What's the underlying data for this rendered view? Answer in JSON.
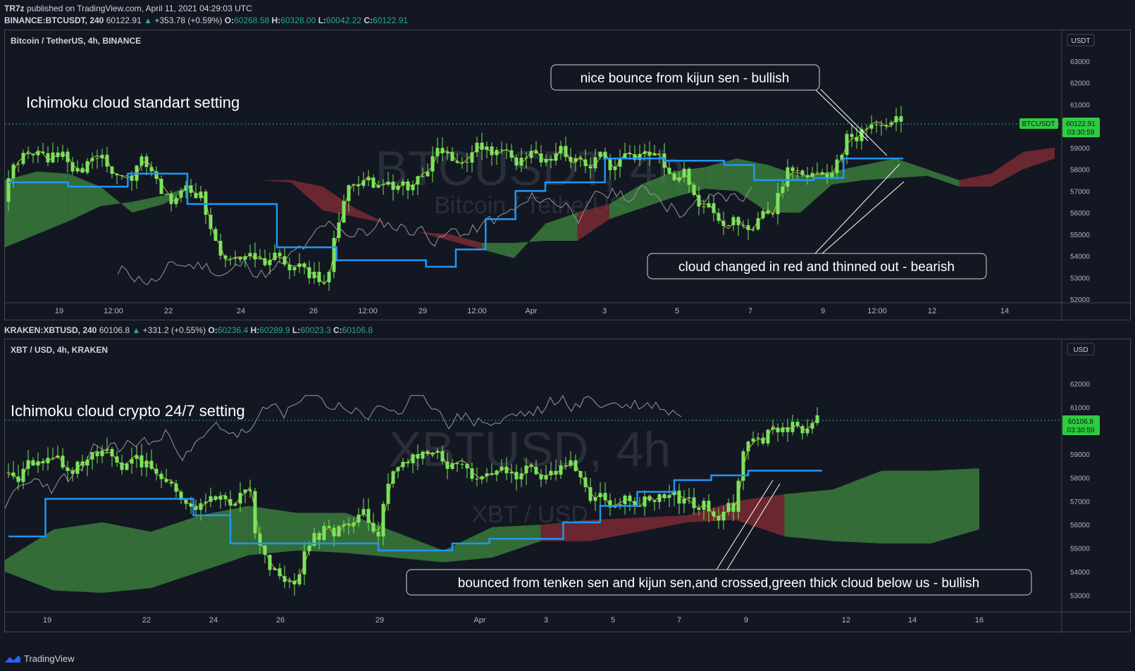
{
  "header": {
    "publisher": "TR7z",
    "published_text": "published on TradingView.com, April 11, 2021 04:29:03 UTC"
  },
  "top": {
    "symbol": "BINANCE:BTCUSDT, 240",
    "last": "60122.91",
    "change": "+353.78 (+0.59%)",
    "open": "60268.58",
    "high": "60328.00",
    "low": "60042.22",
    "close": "60122.91",
    "subtitle": "Bitcoin / TetherUS, 4h, BINANCE",
    "watermark": "BTCUSDT, 4h",
    "watermark2": "Bitcoin / TetherUS",
    "currency": "USDT",
    "price_tag": "BTCUSDT",
    "price_value": "60122.91",
    "price_timer": "03:30:59",
    "title_note": "Ichimoku cloud standart setting",
    "note1": "nice bounce from  kijun sen - bullish",
    "note2": "cloud changed in red and thinned out - bearish"
  },
  "bottom": {
    "symbol": "KRAKEN:XBTUSD, 240",
    "last": "60106.8",
    "change": "+331.2 (+0.55%)",
    "open": "60236.4",
    "high": "60289.9",
    "low": "60023.3",
    "close": "60106.8",
    "subtitle": "XBT / USD, 4h, KRAKEN",
    "watermark": "XBTUSD, 4h",
    "watermark2": "XBT / USD",
    "currency": "USD",
    "price_value": "60106.8",
    "price_timer": "03:30:59",
    "title_note": "Ichimoku cloud crypto 24/7 setting",
    "note1": "bounced from tenken sen and kijun sen,and crossed,green thick cloud below us - bullish"
  },
  "footer": {
    "brand": "TradingView"
  },
  "colors": {
    "up": "#26a69a",
    "candle": "#7be35b",
    "kijun": "#2196f3",
    "tenkan": "#c8b42c",
    "cloud_green": "#3f8a3f",
    "cloud_red": "#8a2e35",
    "lagging": "#9598a1"
  },
  "chart_data": [
    {
      "type": "candlestick",
      "title": "Bitcoin / TetherUS, 4h, BINANCE",
      "ylabel": "USDT",
      "ylim": [
        52000,
        64000
      ],
      "yticks": [
        52000,
        53000,
        54000,
        55000,
        56000,
        57000,
        58000,
        59000,
        60000,
        61000,
        62000,
        63000
      ],
      "xticks": [
        "19",
        "12:00",
        "22",
        "24",
        "26",
        "12:00",
        "29",
        "12:00",
        "Apr",
        "3",
        "5",
        "7",
        "9",
        "12:00",
        "12",
        "14"
      ],
      "last_price": 60122.91,
      "kijun": [
        57400,
        57400,
        57200,
        57200,
        57800,
        57800,
        56400,
        56400,
        56400,
        54400,
        54400,
        53800,
        53800,
        53800,
        53500,
        54300,
        55700,
        57000,
        57400,
        57400,
        58500,
        58500,
        58400,
        58400,
        58200,
        57500,
        57500,
        57600,
        58500,
        58500
      ],
      "cloud_top": [
        57500,
        57900,
        57800,
        57200,
        56000,
        56400,
        57300,
        57400,
        57500,
        57500,
        57200,
        56200,
        55500,
        55100,
        54700,
        54300,
        53900,
        55500,
        56000,
        56400,
        57300,
        57900,
        58100,
        58500,
        58200,
        57700,
        57900,
        58200,
        58500,
        58000,
        57500,
        57800,
        58800,
        59000
      ],
      "cloud_bottom": [
        54400,
        55000,
        55600,
        56300,
        56500,
        56800,
        57300,
        57400,
        57500,
        57400,
        56100,
        55800,
        55500,
        55100,
        55000,
        54600,
        54600,
        54700,
        54700,
        55700,
        56200,
        56700,
        57100,
        57000,
        56000,
        56000,
        57300,
        57500,
        57600,
        57700,
        57200,
        57200,
        58000,
        58500
      ]
    },
    {
      "type": "candlestick",
      "title": "XBT / USD, 4h, KRAKEN",
      "ylabel": "USD",
      "ylim": [
        52500,
        63500
      ],
      "yticks": [
        53000,
        54000,
        55000,
        56000,
        57000,
        58000,
        59000,
        60000,
        61000,
        62000
      ],
      "xticks": [
        "19",
        "22",
        "24",
        "26",
        "29",
        "Apr",
        "3",
        "5",
        "7",
        "9",
        "12",
        "14",
        "16"
      ],
      "last_price": 60106.8,
      "kijun": [
        55500,
        57100,
        57100,
        57100,
        57100,
        56400,
        55200,
        55200,
        55200,
        55200,
        54900,
        54900,
        55200,
        55400,
        55400,
        56100,
        56800,
        57400,
        57900,
        58100,
        58300,
        58300
      ],
      "cloud_top": [
        54500,
        55800,
        56100,
        55700,
        56400,
        56800,
        56500,
        56500,
        55700,
        54900,
        55900,
        56000,
        56200,
        56300,
        56400,
        57000,
        57300,
        57500,
        58300,
        58300,
        58400
      ],
      "cloud_bottom": [
        54000,
        53200,
        53100,
        53300,
        54000,
        54700,
        54900,
        54800,
        54600,
        54400,
        54600,
        55300,
        55300,
        55700,
        56100,
        56200,
        55500,
        55300,
        55200,
        55200,
        55800
      ]
    }
  ]
}
